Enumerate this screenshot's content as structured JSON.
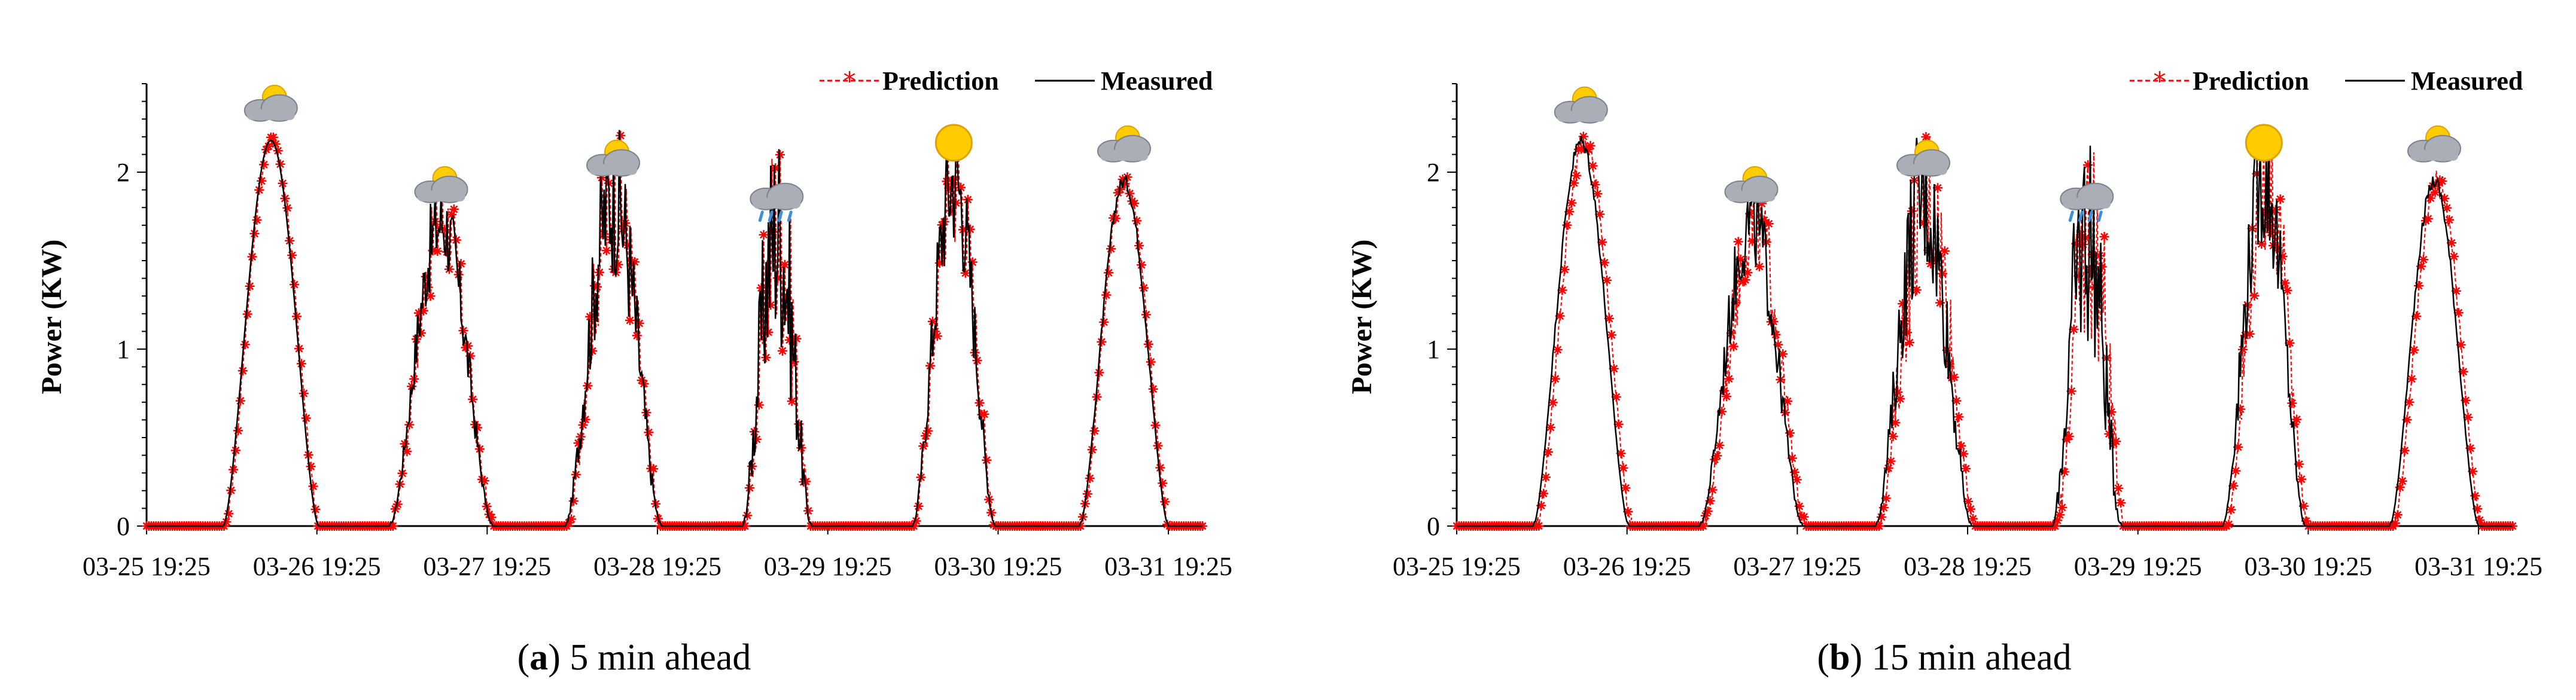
{
  "colors": {
    "prediction": "#ff0000",
    "measured": "#000000",
    "axis": "#000000",
    "sun": "#ffcc00",
    "cloud": "#a9aeb7",
    "rain": "#3d8fd9"
  },
  "chart_data": [
    {
      "type": "line",
      "panel_letter": "a",
      "caption_text": " 5 min ahead",
      "ylabel": "Power (KW)",
      "xlabel": "",
      "ylim": [
        0,
        2.5
      ],
      "yticks": [
        0,
        1,
        2
      ],
      "ytick_labels": [
        "0",
        "1",
        "2"
      ],
      "xlim": [
        0,
        6.2
      ],
      "xticks": [
        0,
        1,
        2,
        3,
        4,
        5,
        6
      ],
      "xtick_labels": [
        "03-25 19:25",
        "03-26 19:25",
        "03-27 19:25",
        "03-28 19:25",
        "03-29 19:25",
        "03-30 19:25",
        "03-31 19:25"
      ],
      "legend": [
        "Prediction",
        "Measured"
      ],
      "legend_position": "top-right",
      "x_units": "days since 03-25 19:25",
      "days": [
        {
          "center": 0.73,
          "half_width": 0.28,
          "peak_kw": 2.18,
          "weather": "partly-cloudy",
          "noise": 0.0
        },
        {
          "center": 1.73,
          "half_width": 0.3,
          "peak_kw": 1.72,
          "weather": "partly-cloudy",
          "noise": 0.35
        },
        {
          "center": 2.74,
          "half_width": 0.28,
          "peak_kw": 1.87,
          "weather": "partly-cloudy",
          "noise": 0.55
        },
        {
          "center": 3.7,
          "half_width": 0.2,
          "peak_kw": 1.68,
          "weather": "rain",
          "noise": 0.9
        },
        {
          "center": 4.74,
          "half_width": 0.24,
          "peak_kw": 1.97,
          "weather": "sunny",
          "noise": 0.45
        },
        {
          "center": 5.74,
          "half_width": 0.26,
          "peak_kw": 1.95,
          "weather": "cloudy",
          "noise": 0.05
        }
      ]
    },
    {
      "type": "line",
      "panel_letter": "b",
      "caption_text": " 15 min ahead",
      "ylabel": "Power (KW)",
      "xlabel": "",
      "ylim": [
        0,
        2.5
      ],
      "yticks": [
        0,
        1,
        2
      ],
      "ytick_labels": [
        "0",
        "1",
        "2"
      ],
      "xlim": [
        0,
        6.2
      ],
      "xticks": [
        0,
        1,
        2,
        3,
        4,
        5,
        6
      ],
      "xtick_labels": [
        "03-25 19:25",
        "03-26 19:25",
        "03-27 19:25",
        "03-28 19:25",
        "03-29 19:25",
        "03-30 19:25",
        "03-31 19:25"
      ],
      "legend": [
        "Prediction",
        "Measured"
      ],
      "legend_position": "top-right",
      "x_units": "days since 03-25 19:25",
      "days": [
        {
          "center": 0.73,
          "half_width": 0.28,
          "peak_kw": 2.17,
          "weather": "partly-cloudy",
          "noise": 0.05
        },
        {
          "center": 1.73,
          "half_width": 0.3,
          "peak_kw": 1.72,
          "weather": "partly-cloudy",
          "noise": 0.35
        },
        {
          "center": 2.74,
          "half_width": 0.28,
          "peak_kw": 1.87,
          "weather": "partly-cloudy",
          "noise": 0.55
        },
        {
          "center": 3.7,
          "half_width": 0.2,
          "peak_kw": 1.68,
          "weather": "rain",
          "noise": 0.9
        },
        {
          "center": 4.74,
          "half_width": 0.24,
          "peak_kw": 1.97,
          "weather": "sunny",
          "noise": 0.45
        },
        {
          "center": 5.74,
          "half_width": 0.26,
          "peak_kw": 1.95,
          "weather": "cloudy",
          "noise": 0.05
        }
      ]
    }
  ]
}
